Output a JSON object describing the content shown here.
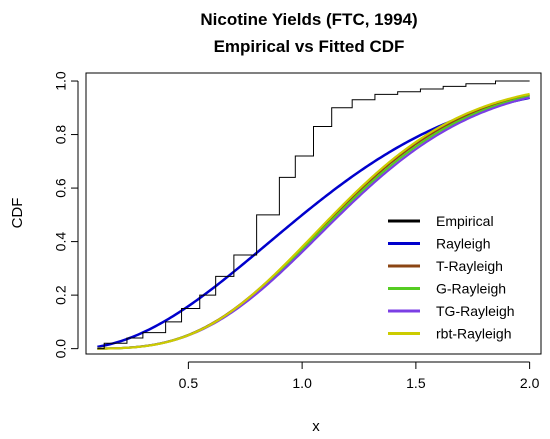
{
  "chart_data": {
    "type": "line",
    "title": "Nicotine Yields (FTC, 1994)",
    "subtitle": "Empirical vs Fitted CDF",
    "xlabel": "x",
    "ylabel": "CDF",
    "xlim": [
      0.05,
      2.05
    ],
    "ylim": [
      -0.02,
      1.03
    ],
    "x_ticks": [
      0.5,
      1.0,
      1.5,
      2.0
    ],
    "x_tick_labels": [
      "0.5",
      "1.0",
      "1.5",
      "2.0"
    ],
    "y_ticks": [
      0.0,
      0.2,
      0.4,
      0.6,
      0.8,
      1.0
    ],
    "y_tick_labels": [
      "0.0",
      "0.2",
      "0.4",
      "0.6",
      "0.8",
      "1.0"
    ],
    "legend_position": "bottom-right",
    "empirical": {
      "name": "Empirical",
      "color": "#000000",
      "x": [
        0.1,
        0.13,
        0.23,
        0.3,
        0.4,
        0.47,
        0.55,
        0.62,
        0.7,
        0.8,
        0.9,
        0.97,
        1.05,
        1.13,
        1.22,
        1.32,
        1.42,
        1.52,
        1.62,
        1.72,
        1.85,
        2.0
      ],
      "y": [
        0.0,
        0.02,
        0.04,
        0.06,
        0.1,
        0.15,
        0.2,
        0.27,
        0.35,
        0.5,
        0.64,
        0.72,
        0.83,
        0.9,
        0.93,
        0.95,
        0.96,
        0.97,
        0.98,
        0.99,
        1.0,
        1.0
      ]
    },
    "series": [
      {
        "name": "Rayleigh",
        "color": "#0000cc",
        "width": 2.5,
        "scale": 0.85,
        "param": 0
      },
      {
        "name": "T-Rayleigh",
        "color": "#8b4513",
        "width": 2.2,
        "scale": 0.75,
        "param": 2.8
      },
      {
        "name": "G-Rayleigh",
        "color": "#55cc22",
        "width": 2.2,
        "scale": 0.76,
        "param": 2.75
      },
      {
        "name": "TG-Rayleigh",
        "color": "#7b3fe4",
        "width": 2.2,
        "scale": 0.77,
        "param": 2.7
      },
      {
        "name": "rbt-Rayleigh",
        "color": "#cccc00",
        "width": 2.2,
        "scale": 0.74,
        "param": 2.95
      }
    ]
  }
}
